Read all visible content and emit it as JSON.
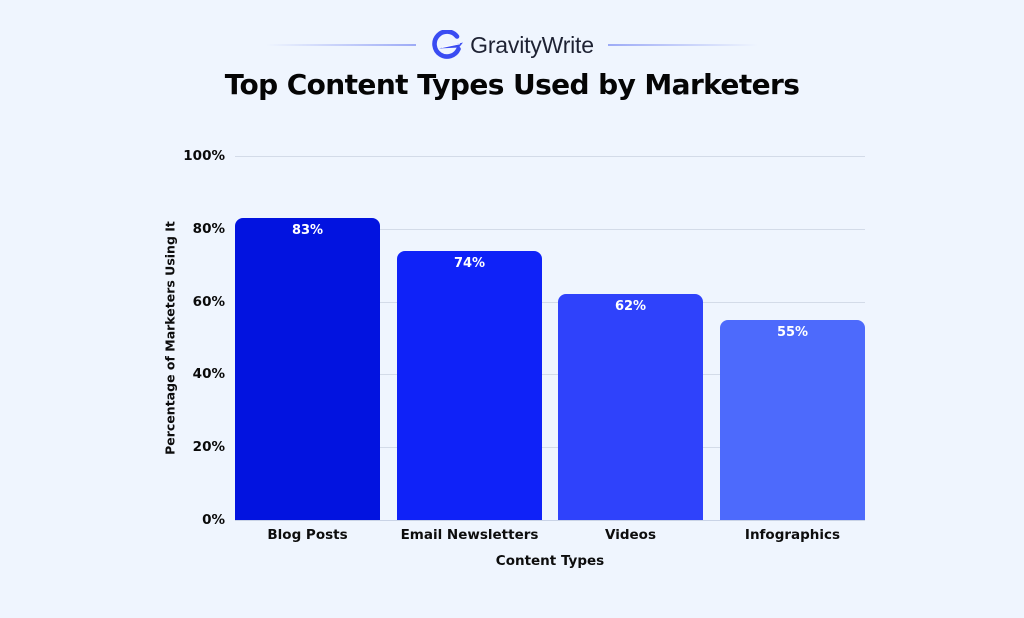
{
  "brand": {
    "name": "GravityWrite",
    "logo_icon": "gravitywrite-g-logo-icon",
    "accent": "#3a4cf2"
  },
  "chart_data": {
    "type": "bar",
    "title": "Top Content Types Used by Marketers",
    "xlabel": "Content Types",
    "ylabel": "Percentage of Marketers Using It",
    "categories": [
      "Blog Posts",
      "Email Newsletters",
      "Videos",
      "Infographics"
    ],
    "values": [
      83,
      74,
      62,
      55
    ],
    "value_labels": [
      "83%",
      "74%",
      "62%",
      "55%"
    ],
    "colors": [
      "#0213e0",
      "#0f22f8",
      "#2f42fb",
      "#4d6afc"
    ],
    "ylim": [
      0,
      100
    ],
    "yticks": [
      0,
      20,
      40,
      60,
      80,
      100
    ],
    "ytick_labels": [
      "0%",
      "20%",
      "40%",
      "60%",
      "80%",
      "100%"
    ],
    "grid": true,
    "legend": null
  }
}
